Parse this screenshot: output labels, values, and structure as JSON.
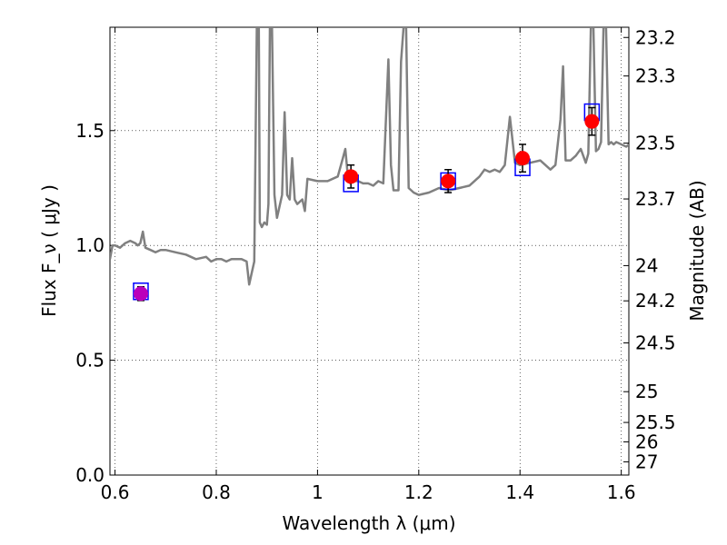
{
  "chart_data": {
    "type": "line",
    "xlabel": "Wavelength  λ (μm)",
    "ylabel": "Flux  F_ν  ( μJy )",
    "y2label": "Magnitude (AB)",
    "xlim": [
      0.59,
      1.615
    ],
    "ylim": [
      0.0,
      1.95
    ],
    "grid": true,
    "x_ticks": [
      {
        "v": 0.6,
        "label": "0.6"
      },
      {
        "v": 0.8,
        "label": "0.8"
      },
      {
        "v": 1.0,
        "label": "1"
      },
      {
        "v": 1.2,
        "label": "1.2"
      },
      {
        "v": 1.4,
        "label": "1.4"
      },
      {
        "v": 1.6,
        "label": "1.6"
      }
    ],
    "y_ticks": [
      {
        "v": 0.0,
        "label": "0.0"
      },
      {
        "v": 0.5,
        "label": "0.5"
      },
      {
        "v": 1.0,
        "label": "1.0"
      },
      {
        "v": 1.5,
        "label": "1.5"
      }
    ],
    "mag_ticks": [
      "23.2",
      "23.3",
      "23.5",
      "23.7",
      "24",
      "24.2",
      "24.5",
      "25",
      "25.5",
      "26",
      "27"
    ],
    "series": [
      {
        "kind": "model_spectrum",
        "color": "#808080",
        "x": [
          0.59,
          0.595,
          0.6,
          0.61,
          0.62,
          0.63,
          0.64,
          0.645,
          0.65,
          0.655,
          0.66,
          0.67,
          0.68,
          0.69,
          0.7,
          0.72,
          0.74,
          0.76,
          0.78,
          0.79,
          0.8,
          0.81,
          0.82,
          0.83,
          0.84,
          0.85,
          0.86,
          0.865,
          0.87,
          0.875,
          0.88,
          0.884,
          0.886,
          0.89,
          0.895,
          0.9,
          0.903,
          0.906,
          0.91,
          0.915,
          0.92,
          0.93,
          0.935,
          0.94,
          0.945,
          0.95,
          0.955,
          0.96,
          0.97,
          0.975,
          0.98,
          1.0,
          1.02,
          1.04,
          1.05,
          1.055,
          1.06,
          1.065,
          1.07,
          1.08,
          1.09,
          1.1,
          1.11,
          1.12,
          1.13,
          1.14,
          1.145,
          1.15,
          1.16,
          1.165,
          1.17,
          1.175,
          1.18,
          1.185,
          1.19,
          1.2,
          1.22,
          1.24,
          1.26,
          1.28,
          1.3,
          1.32,
          1.33,
          1.34,
          1.35,
          1.36,
          1.37,
          1.38,
          1.39,
          1.4,
          1.42,
          1.44,
          1.46,
          1.47,
          1.48,
          1.485,
          1.49,
          1.5,
          1.51,
          1.52,
          1.53,
          1.535,
          1.54,
          1.545,
          1.55,
          1.555,
          1.56,
          1.565,
          1.57,
          1.575,
          1.58,
          1.585,
          1.59,
          1.6,
          1.61,
          1.615
        ],
        "y": [
          0.94,
          1.0,
          1.0,
          0.99,
          1.01,
          1.02,
          1.01,
          1.0,
          1.01,
          1.06,
          0.99,
          0.98,
          0.97,
          0.98,
          0.98,
          0.97,
          0.96,
          0.94,
          0.95,
          0.93,
          0.94,
          0.94,
          0.93,
          0.94,
          0.94,
          0.94,
          0.93,
          0.83,
          0.88,
          0.93,
          1.95,
          1.95,
          1.1,
          1.08,
          1.1,
          1.09,
          1.18,
          1.95,
          1.95,
          1.22,
          1.12,
          1.22,
          1.58,
          1.22,
          1.2,
          1.38,
          1.2,
          1.18,
          1.2,
          1.15,
          1.29,
          1.28,
          1.28,
          1.3,
          1.38,
          1.42,
          1.3,
          1.27,
          1.28,
          1.28,
          1.27,
          1.27,
          1.26,
          1.28,
          1.27,
          1.81,
          1.35,
          1.24,
          1.24,
          1.8,
          1.95,
          1.95,
          1.25,
          1.24,
          1.23,
          1.22,
          1.23,
          1.25,
          1.24,
          1.25,
          1.26,
          1.3,
          1.33,
          1.32,
          1.33,
          1.32,
          1.35,
          1.56,
          1.36,
          1.35,
          1.36,
          1.37,
          1.33,
          1.35,
          1.55,
          1.78,
          1.37,
          1.37,
          1.39,
          1.42,
          1.36,
          1.4,
          1.95,
          1.95,
          1.41,
          1.42,
          1.45,
          1.95,
          1.95,
          1.44,
          1.45,
          1.44,
          1.45,
          1.44,
          1.43,
          1.44
        ]
      },
      {
        "kind": "model_photometry",
        "marker": "square",
        "color": "#0000ff",
        "x": [
          0.651,
          1.066,
          1.258,
          1.405,
          1.542
        ],
        "y": [
          0.8,
          1.27,
          1.28,
          1.34,
          1.58
        ]
      },
      {
        "kind": "observed_photometry",
        "marker": "circle",
        "x": [
          0.651,
          1.066,
          1.258,
          1.405,
          1.542
        ],
        "y": [
          0.79,
          1.3,
          1.28,
          1.38,
          1.54
        ],
        "yerr": [
          0.03,
          0.05,
          0.05,
          0.06,
          0.06
        ],
        "colors": [
          "#bb00bb",
          "#ff0000",
          "#ff0000",
          "#ff0000",
          "#ff0000"
        ]
      }
    ]
  }
}
